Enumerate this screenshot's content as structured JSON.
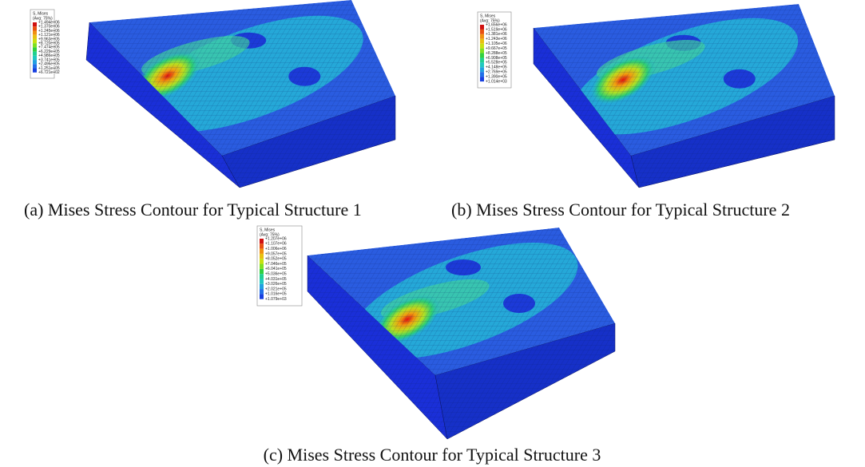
{
  "panels": [
    {
      "caption": "(a) Mises Stress Contour for Typical Structure 1",
      "legend": {
        "title": "S, Mises",
        "subtitle": "(Avg: 75%)",
        "labels": [
          "+1.494e+06",
          "+1.370e+06",
          "+1.245e+06",
          "+1.121e+06",
          "+9.963e+05",
          "+8.720e+05",
          "+7.474e+05",
          "+6.229e+05",
          "+4.986e+05",
          "+3.741e+05",
          "+2.496e+05",
          "+1.251e+05",
          "+6.721e+02"
        ]
      }
    },
    {
      "caption": "(b) Mises Stress Contour for Typical Structure 2",
      "legend": {
        "title": "S, Mises",
        "subtitle": "(Avg: 75%)",
        "labels": [
          "+1.656e+06",
          "+1.519e+06",
          "+1.381e+06",
          "+1.243e+06",
          "+1.105e+06",
          "+9.667e+05",
          "+8.288e+05",
          "+6.908e+05",
          "+5.528e+05",
          "+4.148e+05",
          "+2.769e+05",
          "+1.390e+05",
          "+1.014e+03"
        ]
      }
    },
    {
      "caption": "(c) Mises Stress Contour for Typical Structure 3",
      "legend": {
        "title": "S, Mises",
        "subtitle": "(Avg: 75%)",
        "labels": [
          "+1.207e+06",
          "+1.107e+06",
          "+1.006e+06",
          "+9.057e+05",
          "+8.052e+05",
          "+7.046e+05",
          "+6.041e+05",
          "+5.036e+05",
          "+4.031e+05",
          "+3.026e+05",
          "+2.021e+05",
          "+1.016e+05",
          "+1.079e+03"
        ]
      }
    }
  ]
}
